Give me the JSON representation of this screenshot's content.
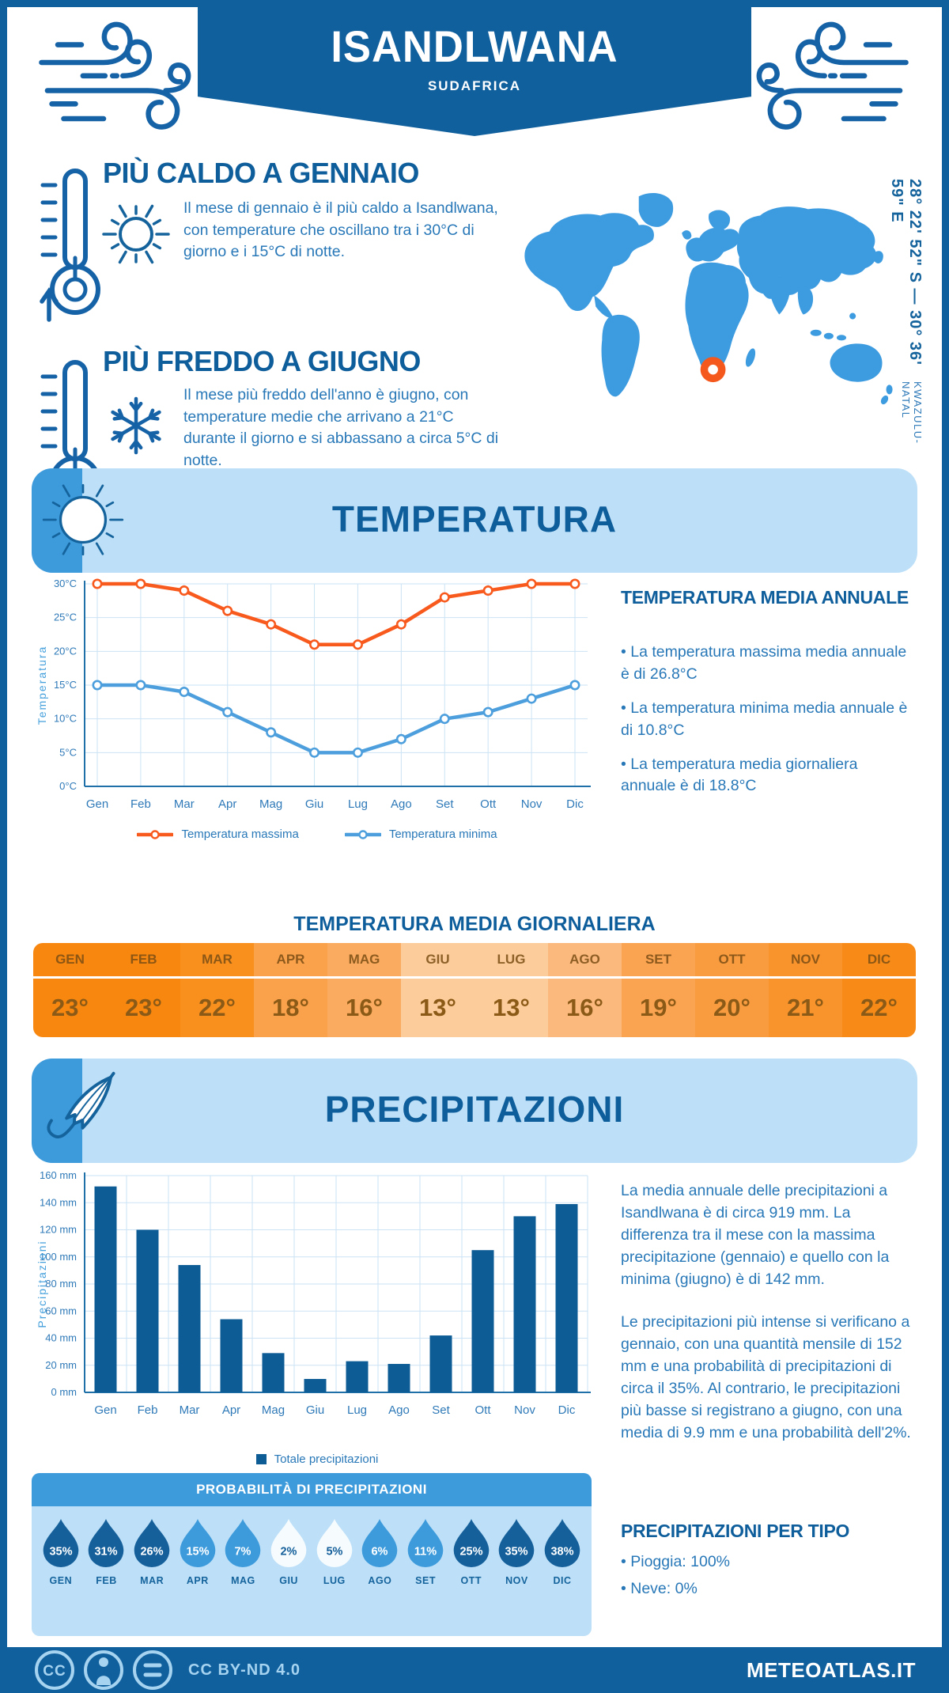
{
  "header": {
    "title": "ISANDLWANA",
    "subtitle": "SUDAFRICA"
  },
  "location": {
    "coordinates": "28° 22' 52\" S — 30° 36' 59\" E",
    "region": "KWAZULU-NATAL"
  },
  "highlights": {
    "warm": {
      "title": "PIÙ CALDO A GENNAIO",
      "text": "Il mese di gennaio è il più caldo a Isandlwana, con temperature che oscillano tra i 30°C di giorno e i 15°C di notte."
    },
    "cold": {
      "title": "PIÙ FREDDO A GIUGNO",
      "text": "Il mese più freddo dell'anno è giugno, con temperature medie che arrivano a 21°C durante il giorno e si abbassano a circa 5°C di notte."
    }
  },
  "temperature": {
    "banner_title": "TEMPERATURA",
    "annual": {
      "title": "TEMPERATURA MEDIA ANNUALE",
      "bullets": [
        "• La temperatura massima media annuale è di 26.8°C",
        "• La temperatura minima media annuale è di 10.8°C",
        "• La temperatura media giornaliera annuale è di 18.8°C"
      ]
    }
  },
  "precipitation": {
    "banner_title": "PRECIPITAZIONI",
    "paragraphs": [
      "La media annuale delle precipitazioni a Isandlwana è di circa 919 mm. La differenza tra il mese con la massima precipitazione (gennaio) e quello con la minima (giugno) è di 142 mm.",
      "Le precipitazioni più intense si verificano a gennaio, con una quantità mensile di 152 mm e una probabilità di precipitazioni di circa il 35%. Al contrario, le precipitazioni più basse si registrano a giugno, con una media di 9.9 mm e una probabilità dell'2%."
    ],
    "per_type": {
      "title": "PRECIPITAZIONI PER TIPO",
      "items": [
        "• Pioggia: 100%",
        "• Neve: 0%"
      ]
    }
  },
  "footer": {
    "license": "CC BY-ND 4.0",
    "site": "METEOATLAS.IT"
  },
  "palette": {
    "dark_blue": "#11609E",
    "heading_blue": "#0F5E9C",
    "body_blue": "#2878B8",
    "banner_light": "#BDE0F8",
    "banner_strip": "#3D9BDC",
    "map_blue": "#3D9BE0",
    "marker_orange": "#F4581C",
    "footer_light": "#A5D3F0"
  },
  "icons": {
    "wind-icon": "swirling gust lines",
    "thermometer-up-icon": "thermometer with up arrow",
    "thermometer-down-icon": "thermometer with down arrow",
    "sun-icon": "outlined sun with rays",
    "snowflake-icon": "six-arm snowflake",
    "umbrella-icon": "closed umbrella",
    "map-marker": "orange ring",
    "cc-icon": "(CC)",
    "cc-person-icon": "(person)",
    "cc-nd-icon": "(=)"
  },
  "chart_data": [
    {
      "type": "line",
      "title": "",
      "categories": [
        "Gen",
        "Feb",
        "Mar",
        "Apr",
        "Mag",
        "Giu",
        "Lug",
        "Ago",
        "Set",
        "Ott",
        "Nov",
        "Dic"
      ],
      "series": [
        {
          "name": "Temperatura massima",
          "color": "#F8591D",
          "values": [
            30,
            30,
            29,
            26,
            24,
            21,
            21,
            24,
            28,
            29,
            30,
            30
          ]
        },
        {
          "name": "Temperatura minima",
          "color": "#4C9FDC",
          "values": [
            15,
            15,
            14,
            11,
            8,
            5,
            5,
            7,
            10,
            11,
            13,
            15
          ]
        }
      ],
      "ylabel": "Temperatura",
      "ylim": [
        0,
        30
      ],
      "ytick_step": 5,
      "yticks": [
        "0°C",
        "5°C",
        "10°C",
        "15°C",
        "20°C",
        "25°C",
        "30°C"
      ],
      "grid": true,
      "legend_position": "bottom"
    },
    {
      "type": "bar",
      "title": "",
      "categories": [
        "Gen",
        "Feb",
        "Mar",
        "Apr",
        "Mag",
        "Giu",
        "Lug",
        "Ago",
        "Set",
        "Ott",
        "Nov",
        "Dic"
      ],
      "series": [
        {
          "name": "Totale precipitazioni",
          "color": "#0E5C96",
          "values": [
            152,
            120,
            94,
            54,
            29,
            9.9,
            23,
            21,
            42,
            105,
            130,
            139
          ]
        }
      ],
      "ylabel": "Precipitazioni",
      "ylim": [
        0,
        160
      ],
      "ytick_step": 20,
      "yticks": [
        "0 mm",
        "20 mm",
        "40 mm",
        "60 mm",
        "80 mm",
        "100 mm",
        "120 mm",
        "140 mm",
        "160 mm"
      ],
      "grid": true,
      "legend_position": "bottom"
    },
    {
      "type": "table",
      "title": "TEMPERATURA MEDIA GIORNALIERA",
      "categories": [
        "GEN",
        "FEB",
        "MAR",
        "APR",
        "MAG",
        "GIU",
        "LUG",
        "AGO",
        "SET",
        "OTT",
        "NOV",
        "DIC"
      ],
      "values": [
        "23°",
        "23°",
        "22°",
        "18°",
        "16°",
        "13°",
        "13°",
        "16°",
        "19°",
        "20°",
        "21°",
        "22°"
      ],
      "cell_colors": [
        "#F8870F",
        "#F8870F",
        "#F9901E",
        "#FAA14B",
        "#FAAB5F",
        "#FCCC9B",
        "#FCCC9B",
        "#FBB97E",
        "#FAA452",
        "#F99C40",
        "#F9932C",
        "#F88B17"
      ]
    },
    {
      "type": "drops",
      "title": "PROBABILITÀ DI PRECIPITAZIONI",
      "categories": [
        "GEN",
        "FEB",
        "MAR",
        "APR",
        "MAG",
        "GIU",
        "LUG",
        "AGO",
        "SET",
        "OTT",
        "NOV",
        "DIC"
      ],
      "values": [
        "35%",
        "31%",
        "26%",
        "15%",
        "7%",
        "2%",
        "5%",
        "6%",
        "11%",
        "25%",
        "35%",
        "38%"
      ],
      "drop_colors": [
        "#15609B",
        "#15609B",
        "#15609B",
        "#3D9BDC",
        "#3D9BDC",
        "#F6FBFE",
        "#F6FBFE",
        "#3D9BDC",
        "#3D9BDC",
        "#15609B",
        "#15609B",
        "#15609B"
      ],
      "value_colors": [
        "#FFFFFF",
        "#FFFFFF",
        "#FFFFFF",
        "#FFFFFF",
        "#FFFFFF",
        "#15609B",
        "#15609B",
        "#FFFFFF",
        "#FFFFFF",
        "#FFFFFF",
        "#FFFFFF",
        "#FFFFFF"
      ]
    }
  ]
}
